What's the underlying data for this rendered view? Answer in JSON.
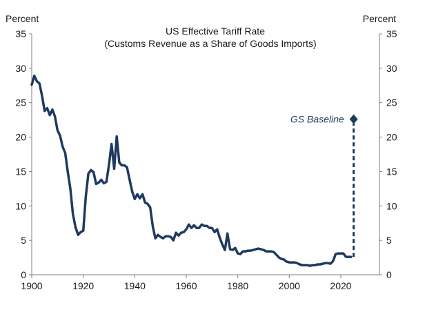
{
  "chart_data": {
    "type": "line",
    "title": "US Effective  Tariff  Rate",
    "subtitle": "(Customs Revenue  as a Share of Goods Imports)",
    "ylabel_left": "Percent",
    "ylabel_right": "Percent",
    "xlim": [
      1900,
      2035
    ],
    "ylim": [
      0,
      35
    ],
    "xticks": [
      1900,
      1920,
      1940,
      1960,
      1980,
      2000,
      2020
    ],
    "yticks": [
      0,
      5,
      10,
      15,
      20,
      25,
      30,
      35
    ],
    "grid": false,
    "colors": {
      "line": "#1f3a5f",
      "axis": "#7f7f7f"
    },
    "series": [
      {
        "x": [
          1900,
          1901,
          1902,
          1903,
          1904,
          1905,
          1906,
          1907,
          1908,
          1909,
          1910,
          1911,
          1912,
          1913,
          1914,
          1915,
          1916,
          1917,
          1918,
          1919,
          1920,
          1921,
          1922,
          1923,
          1924,
          1925,
          1926,
          1927,
          1928,
          1929,
          1930,
          1931,
          1932,
          1933,
          1934,
          1935,
          1936,
          1937,
          1938,
          1939,
          1940,
          1941,
          1942,
          1943,
          1944,
          1945,
          1946,
          1947,
          1948,
          1949,
          1950,
          1951,
          1952,
          1953,
          1954,
          1955,
          1956,
          1957,
          1958,
          1959,
          1960,
          1961,
          1962,
          1963,
          1964,
          1965,
          1966,
          1967,
          1968,
          1969,
          1970,
          1971,
          1972,
          1973,
          1974,
          1975,
          1976,
          1977,
          1978,
          1979,
          1980,
          1981,
          1982,
          1983,
          1984,
          1985,
          1986,
          1987,
          1988,
          1989,
          1990,
          1991,
          1992,
          1993,
          1994,
          1995,
          1996,
          1997,
          1998,
          1999,
          2000,
          2001,
          2002,
          2003,
          2004,
          2005,
          2006,
          2007,
          2008,
          2009,
          2010,
          2011,
          2012,
          2013,
          2014,
          2015,
          2016,
          2017,
          2018,
          2019,
          2020,
          2021,
          2022,
          2023,
          2024
        ],
        "values": [
          27.6,
          28.9,
          28.1,
          27.8,
          26.0,
          23.8,
          24.2,
          23.2,
          24.0,
          23.0,
          21.0,
          20.2,
          18.6,
          17.7,
          14.9,
          12.5,
          8.8,
          6.9,
          5.8,
          6.2,
          6.4,
          11.4,
          14.7,
          15.2,
          14.9,
          13.2,
          13.4,
          13.8,
          13.3,
          13.5,
          16.0,
          19.0,
          15.4,
          20.1,
          16.3,
          15.9,
          15.9,
          15.6,
          13.8,
          12.1,
          11.0,
          11.7,
          11.1,
          11.7,
          10.5,
          10.3,
          9.8,
          7.0,
          5.3,
          5.8,
          5.5,
          5.3,
          5.6,
          5.6,
          5.5,
          5.0,
          6.1,
          5.7,
          6.1,
          6.2,
          6.6,
          7.3,
          6.8,
          7.2,
          6.8,
          6.8,
          7.3,
          7.1,
          7.1,
          6.8,
          6.8,
          6.2,
          6.6,
          5.4,
          4.4,
          3.6,
          6.0,
          3.7,
          3.6,
          3.9,
          3.1,
          3.0,
          3.4,
          3.4,
          3.5,
          3.5,
          3.6,
          3.7,
          3.8,
          3.7,
          3.6,
          3.4,
          3.4,
          3.4,
          3.3,
          2.9,
          2.5,
          2.3,
          2.2,
          1.9,
          1.8,
          1.8,
          1.8,
          1.7,
          1.5,
          1.4,
          1.4,
          1.4,
          1.3,
          1.4,
          1.4,
          1.5,
          1.5,
          1.6,
          1.7,
          1.7,
          1.6,
          2.0,
          3.0,
          3.1,
          3.1,
          3.1,
          2.6,
          2.6,
          2.6
        ]
      }
    ],
    "projection": {
      "label": "GS Baseline",
      "x": [
        2025,
        2025
      ],
      "values": [
        2.6,
        22.6
      ]
    }
  }
}
